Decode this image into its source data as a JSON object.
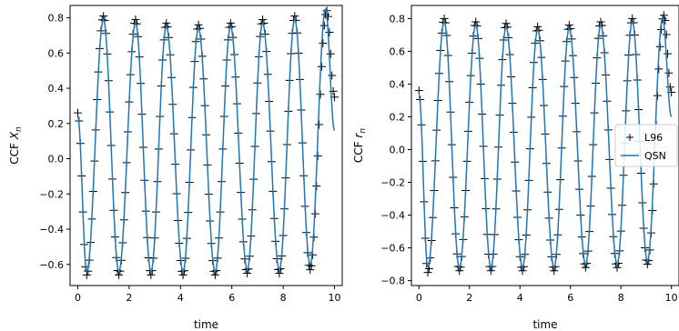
{
  "chart_data": [
    {
      "type": "line",
      "title": "",
      "xlabel": "time",
      "ylabel": "CCF X_n",
      "ylabel_base": "CCF ",
      "ylabel_var": "X",
      "ylabel_sub": "n",
      "xlim": [
        -0.3,
        10.3
      ],
      "ylim": [
        -0.72,
        0.87
      ],
      "xticks": [
        0,
        2,
        4,
        6,
        8,
        10
      ],
      "yticks": [
        -0.6,
        -0.4,
        -0.2,
        0.0,
        0.2,
        0.4,
        0.6,
        0.8
      ],
      "ytick_labels": [
        "−0.6",
        "−0.4",
        "−0.2",
        "0.0",
        "0.2",
        "0.4",
        "0.6",
        "0.8"
      ],
      "grid": false,
      "legend": null,
      "series": [
        {
          "name": "L96",
          "style": "markers",
          "marker": "+",
          "color": "#000000",
          "x_start": 0.0,
          "x_end": 10.0,
          "x_step": 0.05,
          "peaks": [
            {
              "x": 0.0,
              "y": 0.26
            },
            {
              "x": 0.35,
              "y": -0.66
            },
            {
              "x": 1.0,
              "y": 0.81
            },
            {
              "x": 1.6,
              "y": -0.66
            },
            {
              "x": 2.25,
              "y": 0.79
            },
            {
              "x": 2.85,
              "y": -0.66
            },
            {
              "x": 3.45,
              "y": 0.77
            },
            {
              "x": 4.1,
              "y": -0.66
            },
            {
              "x": 4.7,
              "y": 0.76
            },
            {
              "x": 5.35,
              "y": -0.66
            },
            {
              "x": 5.95,
              "y": 0.77
            },
            {
              "x": 6.6,
              "y": -0.65
            },
            {
              "x": 7.2,
              "y": 0.79
            },
            {
              "x": 7.85,
              "y": -0.65
            },
            {
              "x": 8.45,
              "y": 0.81
            },
            {
              "x": 9.05,
              "y": -0.63
            },
            {
              "x": 9.7,
              "y": 0.84
            },
            {
              "x": 10.0,
              "y": 0.35
            }
          ]
        },
        {
          "name": "QSN",
          "style": "line",
          "color": "#1f77b4",
          "x_start": 0.0,
          "x_end": 10.0,
          "x_step": 0.02,
          "peaks": [
            {
              "x": 0.0,
              "y": 0.24
            },
            {
              "x": 0.35,
              "y": -0.64
            },
            {
              "x": 1.0,
              "y": 0.79
            },
            {
              "x": 1.6,
              "y": -0.64
            },
            {
              "x": 2.25,
              "y": 0.77
            },
            {
              "x": 2.85,
              "y": -0.64
            },
            {
              "x": 3.45,
              "y": 0.75
            },
            {
              "x": 4.1,
              "y": -0.64
            },
            {
              "x": 4.7,
              "y": 0.74
            },
            {
              "x": 5.35,
              "y": -0.64
            },
            {
              "x": 5.95,
              "y": 0.75
            },
            {
              "x": 6.6,
              "y": -0.63
            },
            {
              "x": 7.2,
              "y": 0.77
            },
            {
              "x": 7.85,
              "y": -0.63
            },
            {
              "x": 8.45,
              "y": 0.79
            },
            {
              "x": 9.05,
              "y": -0.6
            },
            {
              "x": 9.65,
              "y": 0.85
            },
            {
              "x": 10.0,
              "y": 0.16
            }
          ]
        }
      ]
    },
    {
      "type": "line",
      "title": "",
      "xlabel": "time",
      "ylabel": "CCF r_n",
      "ylabel_base": "CCF ",
      "ylabel_var": "r",
      "ylabel_sub": "n",
      "xlim": [
        -0.3,
        10.3
      ],
      "ylim": [
        -0.83,
        0.88
      ],
      "xticks": [
        0,
        2,
        4,
        6,
        8,
        10
      ],
      "yticks": [
        -0.8,
        -0.6,
        -0.4,
        -0.2,
        0.0,
        0.2,
        0.4,
        0.6,
        0.8
      ],
      "ytick_labels": [
        "−0.8",
        "−0.6",
        "−0.4",
        "−0.2",
        "0.0",
        "0.2",
        "0.4",
        "0.6",
        "0.8"
      ],
      "grid": false,
      "legend": {
        "location": "center-right",
        "entries": [
          "L96",
          "QSN"
        ]
      },
      "series": [
        {
          "name": "L96",
          "style": "markers",
          "marker": "+",
          "color": "#000000",
          "x_start": 0.0,
          "x_end": 10.0,
          "x_step": 0.05,
          "peaks": [
            {
              "x": 0.0,
              "y": 0.36
            },
            {
              "x": 0.35,
              "y": -0.75
            },
            {
              "x": 1.0,
              "y": 0.8
            },
            {
              "x": 1.6,
              "y": -0.74
            },
            {
              "x": 2.25,
              "y": 0.78
            },
            {
              "x": 2.85,
              "y": -0.74
            },
            {
              "x": 3.45,
              "y": 0.77
            },
            {
              "x": 4.1,
              "y": -0.74
            },
            {
              "x": 4.7,
              "y": 0.75
            },
            {
              "x": 5.35,
              "y": -0.74
            },
            {
              "x": 5.95,
              "y": 0.76
            },
            {
              "x": 6.6,
              "y": -0.72
            },
            {
              "x": 7.2,
              "y": 0.78
            },
            {
              "x": 7.85,
              "y": -0.72
            },
            {
              "x": 8.45,
              "y": 0.8
            },
            {
              "x": 9.05,
              "y": -0.7
            },
            {
              "x": 9.7,
              "y": 0.82
            },
            {
              "x": 10.0,
              "y": 0.35
            }
          ]
        },
        {
          "name": "QSN",
          "style": "line",
          "color": "#1f77b4",
          "x_start": 0.0,
          "x_end": 10.0,
          "x_step": 0.02,
          "peaks": [
            {
              "x": 0.0,
              "y": 0.33
            },
            {
              "x": 0.35,
              "y": -0.72
            },
            {
              "x": 1.0,
              "y": 0.78
            },
            {
              "x": 1.6,
              "y": -0.72
            },
            {
              "x": 2.25,
              "y": 0.76
            },
            {
              "x": 2.85,
              "y": -0.72
            },
            {
              "x": 3.45,
              "y": 0.75
            },
            {
              "x": 4.1,
              "y": -0.72
            },
            {
              "x": 4.7,
              "y": 0.73
            },
            {
              "x": 5.35,
              "y": -0.72
            },
            {
              "x": 5.95,
              "y": 0.74
            },
            {
              "x": 6.6,
              "y": -0.7
            },
            {
              "x": 7.2,
              "y": 0.76
            },
            {
              "x": 7.85,
              "y": -0.7
            },
            {
              "x": 8.45,
              "y": 0.78
            },
            {
              "x": 9.05,
              "y": -0.68
            },
            {
              "x": 9.65,
              "y": 0.8
            },
            {
              "x": 10.0,
              "y": 0.2
            }
          ]
        }
      ]
    }
  ]
}
